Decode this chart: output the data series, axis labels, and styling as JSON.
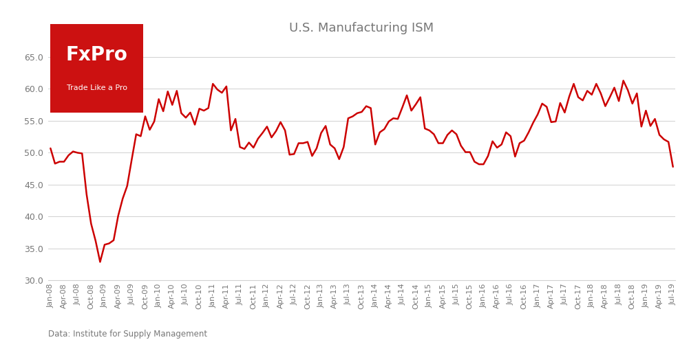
{
  "title": "U.S. Manufacturing ISM",
  "source": "Data: Institute for Supply Management",
  "line_color": "#cc0000",
  "background_color": "#ffffff",
  "grid_color": "#d0d0d0",
  "ylim": [
    30.0,
    67.5
  ],
  "yticks": [
    30.0,
    35.0,
    40.0,
    45.0,
    50.0,
    55.0,
    60.0,
    65.0
  ],
  "title_color": "#777777",
  "tick_color": "#777777",
  "logo_bg": "#cc1111",
  "logo_text_color": "#ffffff",
  "values": [
    50.7,
    48.3,
    48.6,
    48.6,
    49.6,
    50.2,
    50.0,
    49.9,
    43.5,
    38.9,
    36.2,
    32.9,
    35.6,
    35.8,
    36.3,
    40.1,
    42.8,
    44.8,
    48.9,
    52.9,
    52.6,
    55.7,
    53.6,
    54.9,
    58.4,
    56.5,
    59.6,
    57.5,
    59.7,
    56.2,
    55.5,
    56.3,
    54.4,
    56.9,
    56.6,
    57.0,
    60.8,
    59.9,
    59.4,
    60.4,
    53.5,
    55.3,
    50.9,
    50.6,
    51.6,
    50.8,
    52.2,
    53.1,
    54.1,
    52.4,
    53.4,
    54.8,
    53.5,
    49.7,
    49.8,
    51.5,
    51.5,
    51.7,
    49.5,
    50.7,
    53.1,
    54.2,
    51.3,
    50.7,
    49.0,
    50.9,
    55.4,
    55.7,
    56.2,
    56.4,
    57.3,
    57.0,
    51.3,
    53.2,
    53.7,
    54.9,
    55.4,
    55.3,
    57.1,
    59.0,
    56.6,
    57.6,
    58.7,
    53.8,
    53.5,
    52.9,
    51.5,
    51.5,
    52.8,
    53.5,
    52.9,
    51.1,
    50.1,
    50.1,
    48.6,
    48.2,
    48.2,
    49.5,
    51.8,
    50.8,
    51.3,
    53.2,
    52.6,
    49.4,
    51.5,
    51.9,
    53.2,
    54.7,
    56.0,
    57.7,
    57.2,
    54.8,
    54.9,
    57.8,
    56.3,
    58.8,
    60.8,
    58.7,
    58.2,
    59.7,
    59.1,
    60.8,
    59.3,
    57.3,
    58.7,
    60.2,
    58.1,
    61.3,
    59.8,
    57.7,
    59.3,
    54.1,
    56.6,
    54.2,
    55.3,
    52.8,
    52.1,
    51.7,
    47.8
  ],
  "xtick_labels": [
    "Jan-08",
    "Apr-08",
    "Jul-08",
    "Oct-08",
    "Jan-09",
    "Apr-09",
    "Jul-09",
    "Oct-09",
    "Jan-10",
    "Apr-10",
    "Jul-10",
    "Oct-10",
    "Jan-11",
    "Apr-11",
    "Jul-11",
    "Oct-11",
    "Jan-12",
    "Apr-12",
    "Jul-12",
    "Oct-12",
    "Jan-13",
    "Apr-13",
    "Jul-13",
    "Oct-13",
    "Jan-14",
    "Apr-14",
    "Jul-14",
    "Oct-14",
    "Jan-15",
    "Apr-15",
    "Jul-15",
    "Oct-15",
    "Jan-16",
    "Apr-16",
    "Jul-16",
    "Oct-16",
    "Jan-17",
    "Apr-17",
    "Jul-17",
    "Oct-17",
    "Jan-18",
    "Apr-18",
    "Jul-18",
    "Oct-18",
    "Jan-19",
    "Apr-19",
    "Jul-19"
  ],
  "xtick_positions": [
    0,
    3,
    6,
    9,
    12,
    15,
    18,
    21,
    24,
    27,
    30,
    33,
    36,
    39,
    42,
    45,
    48,
    51,
    54,
    57,
    60,
    63,
    66,
    69,
    72,
    75,
    78,
    81,
    84,
    87,
    90,
    93,
    96,
    99,
    102,
    105,
    108,
    111,
    114,
    117,
    120,
    123,
    126,
    129,
    132,
    135,
    138
  ]
}
